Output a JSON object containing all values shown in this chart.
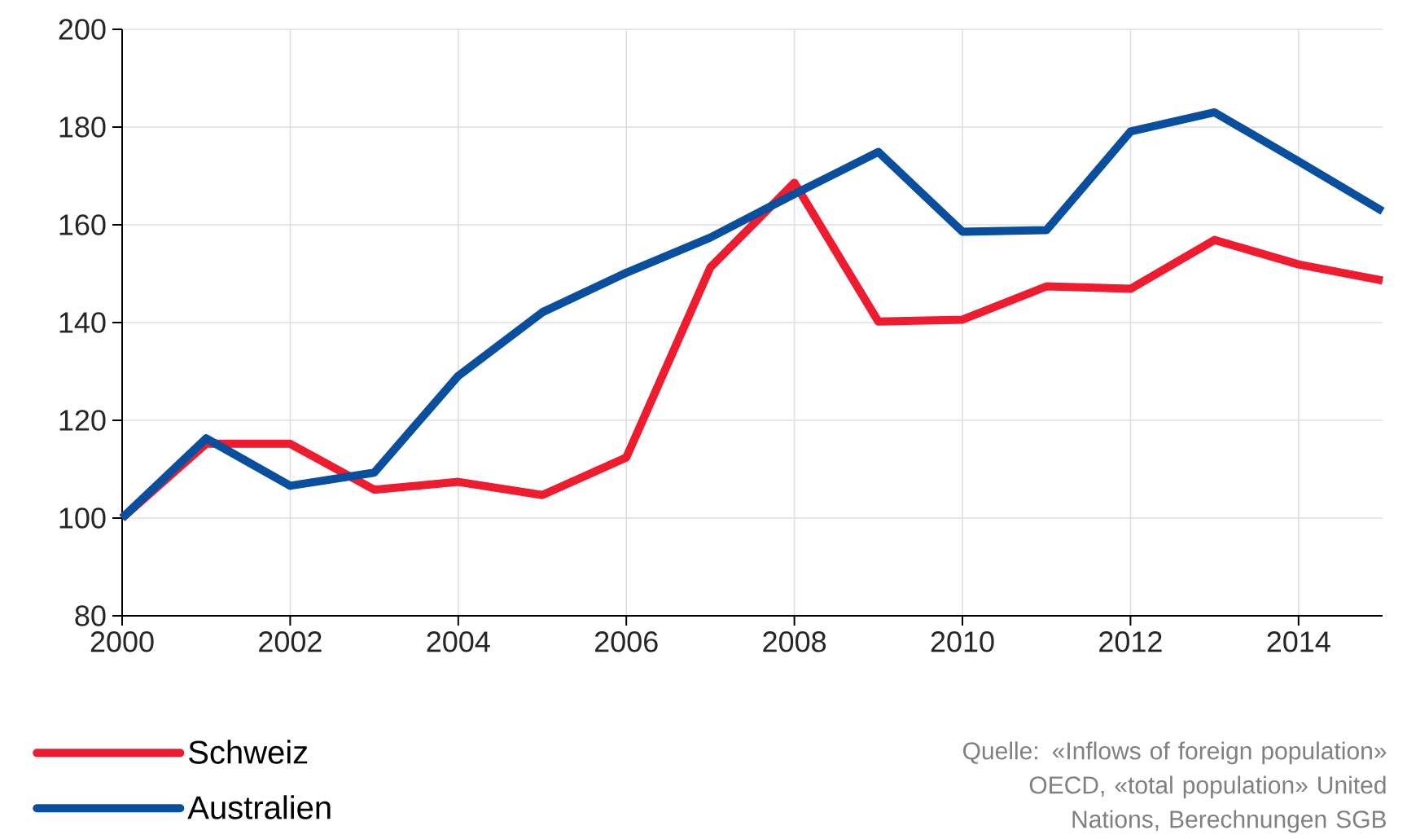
{
  "chart_data": {
    "type": "line",
    "x": [
      2000,
      2001,
      2002,
      2003,
      2004,
      2005,
      2006,
      2007,
      2008,
      2009,
      2010,
      2011,
      2012,
      2013,
      2014,
      2015
    ],
    "series": [
      {
        "name": "Schweiz",
        "color": "#ee1c2e",
        "values": [
          100,
          115.2,
          115.2,
          105.8,
          107.4,
          104.7,
          112.4,
          151.3,
          168.6,
          140.2,
          140.6,
          147.4,
          146.9,
          156.9,
          151.9,
          148.6
        ]
      },
      {
        "name": "Australien",
        "color": "#0a4f9e",
        "values": [
          100,
          116.3,
          106.6,
          109.3,
          129.1,
          142.1,
          150.2,
          157.4,
          166.3,
          174.9,
          158.6,
          158.9,
          179.1,
          183,
          173,
          162.8
        ]
      }
    ],
    "xlim": [
      2000,
      2015
    ],
    "xticks": [
      2000,
      2002,
      2004,
      2006,
      2008,
      2010,
      2012,
      2014
    ],
    "ylim": [
      80,
      200
    ],
    "yticks": [
      80,
      100,
      120,
      140,
      160,
      180,
      200
    ],
    "grid": true,
    "legend": "bottom left",
    "marker": "none",
    "line_style": "solid",
    "annotations": [
      "Quelle: «Inflows of foreign population» OECD, «total population» United Nations, Berechnungen SGB"
    ]
  }
}
